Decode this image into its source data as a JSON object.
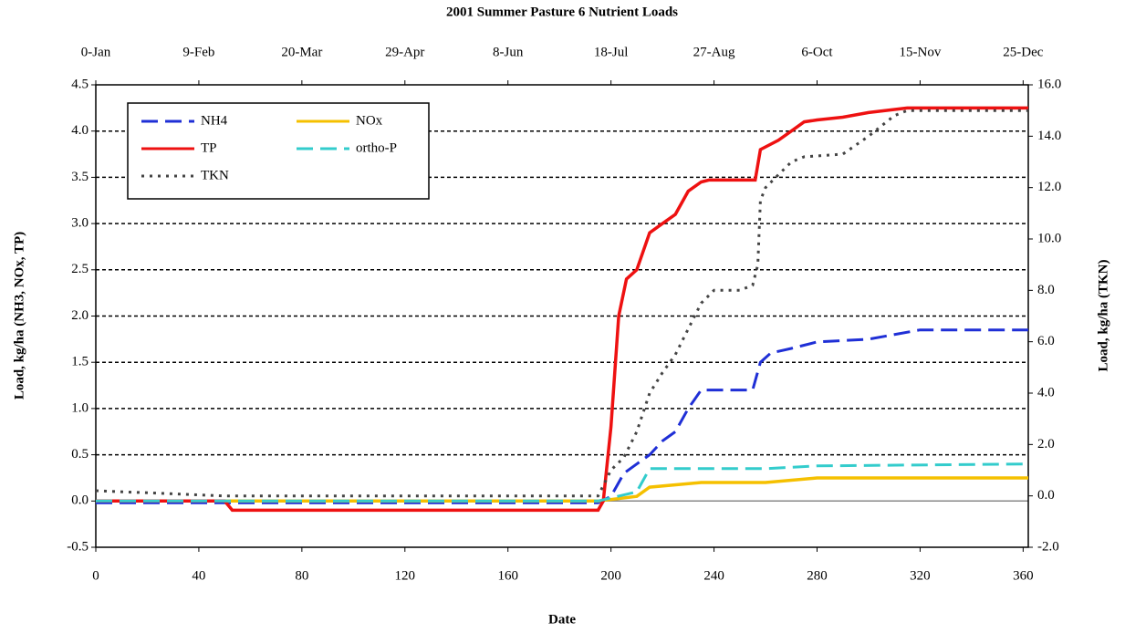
{
  "chart_data": {
    "type": "line",
    "title": "2001 Summer Pasture 6  Nutrient Loads",
    "xlabel": "Date",
    "ylabel": "Load, kg/ha (NH3, NOx, TP)",
    "y2label": "Load, kg/ha (TKN)",
    "xlim": [
      0,
      362
    ],
    "xticks": [
      0,
      40,
      80,
      120,
      160,
      200,
      240,
      280,
      320,
      360
    ],
    "x2ticks": [
      {
        "value": 0,
        "label": "0-Jan"
      },
      {
        "value": 40,
        "label": "9-Feb"
      },
      {
        "value": 80,
        "label": "20-Mar"
      },
      {
        "value": 120,
        "label": "29-Apr"
      },
      {
        "value": 160,
        "label": "8-Jun"
      },
      {
        "value": 200,
        "label": "18-Jul"
      },
      {
        "value": 240,
        "label": "27-Aug"
      },
      {
        "value": 280,
        "label": "6-Oct"
      },
      {
        "value": 320,
        "label": "15-Nov"
      },
      {
        "value": 360,
        "label": "25-Dec"
      }
    ],
    "ylim": [
      -0.5,
      4.5
    ],
    "yticks": [
      -0.5,
      {
        "value": 0,
        "label": "0.0"
      },
      0.5,
      {
        "value": 1,
        "label": "1.0"
      },
      1.5,
      {
        "value": 2,
        "label": "2.0"
      },
      2.5,
      {
        "value": 3,
        "label": "3.0"
      },
      3.5,
      {
        "value": 4,
        "label": "4.0"
      },
      4.5
    ],
    "y2lim": [
      -2,
      16
    ],
    "y2ticks": [
      {
        "value": -2,
        "label": "-2.0"
      },
      {
        "value": 0,
        "label": "0.0"
      },
      {
        "value": 2,
        "label": "2.0"
      },
      {
        "value": 4,
        "label": "4.0"
      },
      {
        "value": 6,
        "label": "6.0"
      },
      {
        "value": 8,
        "label": "8.0"
      },
      {
        "value": 10,
        "label": "10.0"
      },
      {
        "value": 12,
        "label": "12.0"
      },
      {
        "value": 14,
        "label": "14.0"
      },
      {
        "value": 16,
        "label": "16.0"
      }
    ],
    "grid": true,
    "legend": "upper left",
    "series": [
      {
        "name": "NH4",
        "color": "#1f2fd6",
        "style": "dashed",
        "x": [
          0,
          195,
          200,
          205,
          210,
          215,
          220,
          225,
          230,
          235,
          245,
          255,
          258,
          262,
          270,
          280,
          300,
          320,
          362
        ],
        "values": [
          -0.02,
          -0.02,
          0.05,
          0.3,
          0.4,
          0.5,
          0.65,
          0.75,
          1.0,
          1.2,
          1.2,
          1.2,
          1.5,
          1.6,
          1.65,
          1.72,
          1.75,
          1.85,
          1.85
        ]
      },
      {
        "name": "NOx",
        "color": "#f5c000",
        "style": "solid",
        "x": [
          0,
          195,
          210,
          215,
          235,
          260,
          280,
          362
        ],
        "values": [
          0,
          0,
          0.05,
          0.15,
          0.2,
          0.2,
          0.25,
          0.25
        ]
      },
      {
        "name": "TP",
        "color": "#ee1111",
        "style": "solid",
        "x": [
          0,
          50,
          53,
          195,
          197,
          200,
          203,
          206,
          210,
          215,
          220,
          225,
          230,
          235,
          238,
          250,
          256,
          258,
          265,
          270,
          275,
          280,
          290,
          300,
          315,
          362
        ],
        "values": [
          0,
          0,
          -0.1,
          -0.1,
          0,
          0.8,
          2.0,
          2.4,
          2.5,
          2.9,
          3.0,
          3.1,
          3.35,
          3.45,
          3.47,
          3.47,
          3.47,
          3.8,
          3.9,
          4.0,
          4.1,
          4.12,
          4.15,
          4.2,
          4.25,
          4.25
        ]
      },
      {
        "name": "ortho-P",
        "color": "#33cccc",
        "style": "dashed",
        "x": [
          0,
          195,
          210,
          215,
          240,
          260,
          280,
          362
        ],
        "values": [
          0,
          0,
          0.1,
          0.35,
          0.35,
          0.35,
          0.38,
          0.4
        ]
      },
      {
        "name": "TKN",
        "color": "#444444",
        "style": "dotted",
        "axis": "y2",
        "x": [
          0,
          50,
          195,
          200,
          205,
          210,
          215,
          220,
          225,
          230,
          235,
          240,
          250,
          255,
          257,
          258,
          260,
          270,
          275,
          290,
          300,
          310,
          315,
          362
        ],
        "values": [
          0.2,
          0,
          0,
          1,
          1.5,
          2.5,
          4.0,
          4.8,
          5.5,
          6.5,
          7.5,
          8.0,
          8.0,
          8.2,
          9.0,
          11.5,
          12.0,
          13.0,
          13.2,
          13.3,
          14.0,
          14.8,
          15,
          15
        ]
      }
    ]
  }
}
